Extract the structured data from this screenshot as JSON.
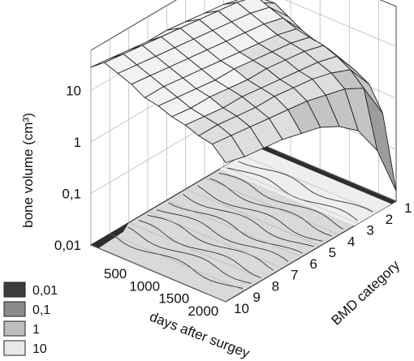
{
  "chart_data": {
    "type": "surface-3d",
    "title": "",
    "zlabel": "bone volume (cm³)",
    "xlabel": "days after surgey",
    "ylabel": "BMD category",
    "z_scale": "log",
    "z_ticks": [
      "0,01",
      "0,1",
      "1",
      "10"
    ],
    "x_ticks": [
      "500",
      "1000",
      "1500",
      "2000"
    ],
    "y_ticks": [
      "1",
      "2",
      "3",
      "4",
      "5",
      "6",
      "7",
      "8",
      "9",
      "10"
    ],
    "x_range": [
      0,
      2300
    ],
    "y_range": [
      1,
      10
    ],
    "z_range": [
      0.01,
      60
    ],
    "grid": true,
    "legend_position": "bottom-left",
    "legend": [
      {
        "label": "0,01",
        "color": "#3c3c3c"
      },
      {
        "label": "0,1",
        "color": "#8a8a8a"
      },
      {
        "label": "1",
        "color": "#bdbdbd"
      },
      {
        "label": "10",
        "color": "#e8e8e8"
      }
    ],
    "bmd_profile_note": "",
    "days": [
      0,
      230,
      460,
      690,
      920,
      1150,
      1380,
      1610,
      1840,
      2070,
      2300
    ],
    "bmd": [
      1,
      2,
      3,
      4,
      5,
      6,
      7,
      8,
      9,
      10
    ],
    "surface_log10": [
      [
        0.75,
        1.05,
        1.15,
        1.2,
        1.25,
        1.3,
        1.3,
        1.35,
        1.4,
        1.45
      ],
      [
        0.85,
        1.2,
        1.3,
        1.35,
        1.4,
        1.45,
        1.5,
        1.55,
        1.6,
        1.65
      ],
      [
        0.7,
        1.1,
        1.2,
        1.25,
        1.3,
        1.35,
        1.4,
        1.45,
        1.5,
        1.55
      ],
      [
        0.55,
        1.0,
        1.1,
        1.15,
        1.2,
        1.25,
        1.3,
        1.35,
        1.4,
        1.45
      ],
      [
        0.45,
        0.9,
        1.0,
        1.05,
        1.1,
        1.15,
        1.2,
        1.25,
        1.3,
        1.3
      ],
      [
        0.4,
        0.85,
        0.95,
        1.0,
        1.05,
        1.1,
        1.1,
        1.15,
        1.2,
        1.25
      ],
      [
        0.3,
        0.8,
        0.9,
        0.95,
        1.0,
        1.0,
        1.05,
        1.1,
        1.1,
        1.15
      ],
      [
        0.2,
        0.7,
        0.8,
        0.85,
        0.9,
        0.95,
        1.0,
        1.0,
        1.05,
        1.1
      ],
      [
        0.05,
        0.55,
        0.7,
        0.8,
        0.85,
        0.9,
        0.9,
        0.95,
        1.0,
        1.0
      ],
      [
        -0.4,
        0.3,
        0.5,
        0.6,
        0.7,
        0.75,
        0.8,
        0.85,
        0.9,
        0.95
      ],
      [
        -1.8,
        -0.8,
        -0.2,
        0.1,
        0.3,
        0.4,
        0.5,
        0.55,
        0.6,
        0.7
      ]
    ]
  }
}
